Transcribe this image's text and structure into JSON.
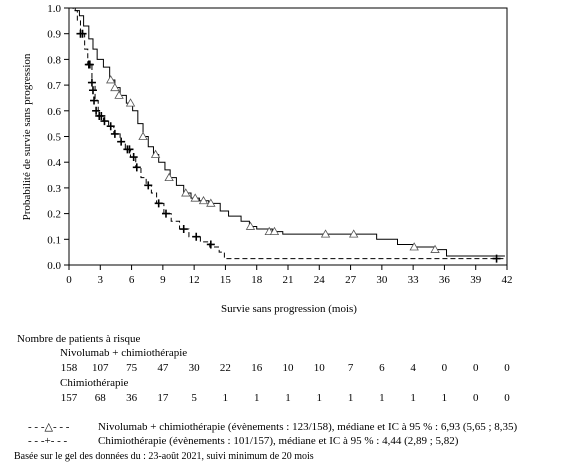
{
  "chart_data": {
    "type": "line",
    "subtype": "kaplan-meier step",
    "xlabel": "Survie sans progression (mois)",
    "ylabel": "Probabilité de survie sans progression",
    "xlim": [
      0,
      42
    ],
    "ylim": [
      0,
      1
    ],
    "xticks": [
      0,
      3,
      6,
      9,
      12,
      15,
      18,
      21,
      24,
      27,
      30,
      33,
      36,
      39,
      42
    ],
    "yticks": [
      "0.0",
      "0.1",
      "0.2",
      "0.3",
      "0.4",
      "0.5",
      "0.6",
      "0.7",
      "0.8",
      "0.9",
      "1.0"
    ],
    "yticks_values": [
      0,
      0.1,
      0.2,
      0.3,
      0.4,
      0.5,
      0.6,
      0.7,
      0.8,
      0.9,
      1.0
    ],
    "grid": false,
    "series": [
      {
        "line_style": "solid",
        "marker": "triangle",
        "steps": [
          [
            0,
            1.0
          ],
          [
            0.3,
            1.0
          ],
          [
            0.6,
            0.99
          ],
          [
            1.0,
            0.97
          ],
          [
            1.4,
            0.93
          ],
          [
            1.9,
            0.88
          ],
          [
            2.3,
            0.84
          ],
          [
            2.7,
            0.8
          ],
          [
            3.3,
            0.77
          ],
          [
            3.9,
            0.72
          ],
          [
            4.4,
            0.69
          ],
          [
            4.9,
            0.66
          ],
          [
            5.5,
            0.63
          ],
          [
            6.1,
            0.6
          ],
          [
            6.6,
            0.55
          ],
          [
            7.1,
            0.5
          ],
          [
            7.6,
            0.46
          ],
          [
            8.1,
            0.43
          ],
          [
            8.6,
            0.4
          ],
          [
            9.2,
            0.37
          ],
          [
            9.7,
            0.34
          ],
          [
            10.3,
            0.31
          ],
          [
            11.0,
            0.28
          ],
          [
            11.7,
            0.26
          ],
          [
            12.5,
            0.25
          ],
          [
            13.4,
            0.24
          ],
          [
            14.5,
            0.21
          ],
          [
            15.3,
            0.19
          ],
          [
            16.5,
            0.17
          ],
          [
            17.3,
            0.15
          ],
          [
            18.0,
            0.14
          ],
          [
            19.5,
            0.13
          ],
          [
            20.5,
            0.12
          ],
          [
            29.5,
            0.1
          ],
          [
            31.5,
            0.08
          ],
          [
            33.0,
            0.07
          ],
          [
            35.0,
            0.06
          ],
          [
            36.2,
            0.035
          ],
          [
            41.8,
            0.035
          ]
        ],
        "censored": [
          [
            4.0,
            0.72
          ],
          [
            4.4,
            0.69
          ],
          [
            4.8,
            0.66
          ],
          [
            5.9,
            0.63
          ],
          [
            7.1,
            0.5
          ],
          [
            8.3,
            0.43
          ],
          [
            9.6,
            0.34
          ],
          [
            11.2,
            0.28
          ],
          [
            12.1,
            0.26
          ],
          [
            12.9,
            0.25
          ],
          [
            13.6,
            0.24
          ],
          [
            17.4,
            0.15
          ],
          [
            19.2,
            0.13
          ],
          [
            19.7,
            0.13
          ],
          [
            24.6,
            0.12
          ],
          [
            27.3,
            0.12
          ],
          [
            33.1,
            0.07
          ],
          [
            35.1,
            0.06
          ]
        ]
      },
      {
        "line_style": "dashed",
        "marker": "plus",
        "steps": [
          [
            0,
            1.0
          ],
          [
            0.4,
            0.99
          ],
          [
            0.8,
            0.95
          ],
          [
            1.1,
            0.9
          ],
          [
            1.5,
            0.84
          ],
          [
            1.8,
            0.78
          ],
          [
            2.2,
            0.71
          ],
          [
            2.5,
            0.64
          ],
          [
            2.8,
            0.58
          ],
          [
            3.3,
            0.56
          ],
          [
            3.8,
            0.54
          ],
          [
            4.3,
            0.51
          ],
          [
            4.9,
            0.48
          ],
          [
            5.4,
            0.45
          ],
          [
            5.9,
            0.42
          ],
          [
            6.4,
            0.38
          ],
          [
            6.9,
            0.34
          ],
          [
            7.4,
            0.31
          ],
          [
            7.9,
            0.28
          ],
          [
            8.4,
            0.24
          ],
          [
            9.1,
            0.2
          ],
          [
            9.8,
            0.17
          ],
          [
            10.6,
            0.14
          ],
          [
            11.5,
            0.11
          ],
          [
            12.6,
            0.09
          ],
          [
            13.5,
            0.07
          ],
          [
            14.4,
            0.05
          ],
          [
            14.9,
            0.025
          ],
          [
            41.8,
            0.025
          ]
        ],
        "censored": [
          [
            1.1,
            0.9
          ],
          [
            1.3,
            0.9
          ],
          [
            1.9,
            0.78
          ],
          [
            2.0,
            0.78
          ],
          [
            2.2,
            0.71
          ],
          [
            2.3,
            0.68
          ],
          [
            2.4,
            0.64
          ],
          [
            2.6,
            0.6
          ],
          [
            2.9,
            0.58
          ],
          [
            3.1,
            0.58
          ],
          [
            3.4,
            0.56
          ],
          [
            4.0,
            0.54
          ],
          [
            4.4,
            0.51
          ],
          [
            5.0,
            0.48
          ],
          [
            5.6,
            0.45
          ],
          [
            5.8,
            0.45
          ],
          [
            6.2,
            0.42
          ],
          [
            6.5,
            0.38
          ],
          [
            7.6,
            0.31
          ],
          [
            8.6,
            0.24
          ],
          [
            9.3,
            0.2
          ],
          [
            11.0,
            0.14
          ],
          [
            12.2,
            0.11
          ],
          [
            13.6,
            0.08
          ],
          [
            41.0,
            0.025
          ]
        ]
      }
    ]
  },
  "risk_table": {
    "title": "Nombre de patients à risque",
    "groups": [
      {
        "name": "Nivolumab + chimiothérapie",
        "counts": [
          "158",
          "107",
          "75",
          "47",
          "30",
          "22",
          "16",
          "10",
          "10",
          "7",
          "6",
          "4",
          "0",
          "0",
          "0"
        ]
      },
      {
        "name": "Chimiothérapie",
        "counts": [
          "157",
          "68",
          "36",
          "17",
          "5",
          "1",
          "1",
          "1",
          "1",
          "1",
          "1",
          "1",
          "1",
          "0",
          "0"
        ]
      }
    ]
  },
  "legend": {
    "items": [
      {
        "symbol": "- - -△- - -",
        "text": "Nivolumab + chimiothérapie (évènements : 123/158), médiane et IC à 95 % : 6,93 (5,65 ; 8,35)"
      },
      {
        "symbol": "- - -+- - -",
        "text": "Chimiothérapie (évènements : 101/157), médiane et IC à 95 % : 4,44 (2,89 ; 5,82)"
      }
    ]
  },
  "footnote": "Basée sur le gel des données du : 23-août 2021, suivi minimum de 20 mois"
}
